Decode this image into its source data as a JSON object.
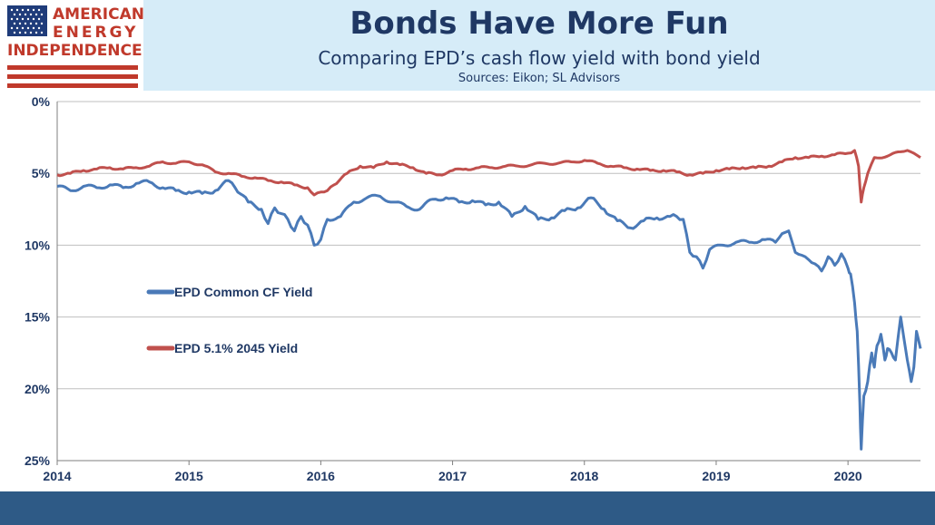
{
  "logo": {
    "line1": "AMERICAN",
    "line2": "ENERGY",
    "line3": "INDEPENDENCE",
    "colors": {
      "red": "#c0392b",
      "blue": "#1f3c7a"
    }
  },
  "header": {
    "title": "Bonds Have More Fun",
    "subtitle": "Comparing EPD’s cash flow yield with bond yield",
    "sources": "Sources: Eikon; SL Advisors"
  },
  "colors": {
    "blue_series": "#4a7ab8",
    "red_series": "#c0504d",
    "header_bg": "#d6ecf8",
    "footer_bg": "#2e5a86",
    "title": "#1f3864"
  },
  "chart_data": {
    "type": "line",
    "title": "",
    "xlabel": "",
    "ylabel": "",
    "y_inverted": true,
    "ylim": [
      0,
      25
    ],
    "y_ticks": [
      "0%",
      "5%",
      "10%",
      "15%",
      "20%",
      "25%"
    ],
    "x_ticks": [
      "2014",
      "2015",
      "2016",
      "2017",
      "2018",
      "2019",
      "2020"
    ],
    "xlim": [
      2014.0,
      2020.55
    ],
    "grid": true,
    "legend_placement": "center-left",
    "series": [
      {
        "name": "EPD Common CF Yield",
        "color": "#4a7ab8",
        "x": [
          2014.0,
          2014.1,
          2014.2,
          2014.3,
          2014.4,
          2014.5,
          2014.6,
          2014.7,
          2014.8,
          2014.9,
          2015.0,
          2015.1,
          2015.2,
          2015.3,
          2015.35,
          2015.45,
          2015.55,
          2015.6,
          2015.65,
          2015.7,
          2015.75,
          2015.8,
          2015.85,
          2015.9,
          2015.95,
          2016.0,
          2016.05,
          2016.15,
          2016.25,
          2016.35,
          2016.45,
          2016.55,
          2016.65,
          2016.75,
          2016.85,
          2016.95,
          2017.05,
          2017.15,
          2017.25,
          2017.35,
          2017.45,
          2017.55,
          2017.65,
          2017.75,
          2017.85,
          2017.95,
          2018.05,
          2018.15,
          2018.25,
          2018.35,
          2018.45,
          2018.55,
          2018.65,
          2018.7,
          2018.75,
          2018.8,
          2018.85,
          2018.9,
          2018.95,
          2019.05,
          2019.15,
          2019.25,
          2019.35,
          2019.45,
          2019.5,
          2019.55,
          2019.6,
          2019.65,
          2019.7,
          2019.75,
          2019.8,
          2019.85,
          2019.9,
          2019.95,
          2020.0,
          2020.02,
          2020.05,
          2020.07,
          2020.09,
          2020.1,
          2020.12,
          2020.15,
          2020.18,
          2020.2,
          2020.22,
          2020.25,
          2020.28,
          2020.3,
          2020.33,
          2020.36,
          2020.4,
          2020.45,
          2020.48,
          2020.5,
          2020.52,
          2020.55
        ],
        "values": [
          5.9,
          6.2,
          5.9,
          6.0,
          5.8,
          6.0,
          5.7,
          5.6,
          6.0,
          6.2,
          6.3,
          6.4,
          6.2,
          5.5,
          6.0,
          7.0,
          7.5,
          8.5,
          7.4,
          7.8,
          8.2,
          9.0,
          8.0,
          8.6,
          10.0,
          9.6,
          8.2,
          8.0,
          7.0,
          6.7,
          6.6,
          7.0,
          7.3,
          7.5,
          6.8,
          6.7,
          7.0,
          6.9,
          7.2,
          7.0,
          8.0,
          7.3,
          8.2,
          8.1,
          7.6,
          7.4,
          6.7,
          7.5,
          8.3,
          8.8,
          8.3,
          8.1,
          8.0,
          8.0,
          8.2,
          10.5,
          10.8,
          11.6,
          10.3,
          10.0,
          9.8,
          9.8,
          9.6,
          9.8,
          9.2,
          9.0,
          10.5,
          10.7,
          11.0,
          11.3,
          11.8,
          10.8,
          11.4,
          10.6,
          11.6,
          12.0,
          14.0,
          16.0,
          21.0,
          24.2,
          20.5,
          19.5,
          17.5,
          18.5,
          17.0,
          16.2,
          18.0,
          17.2,
          17.5,
          18.0,
          15.0,
          18.0,
          19.5,
          18.5,
          16.0,
          17.2
        ]
      },
      {
        "name": "EPD 5.1% 2045 Yield",
        "color": "#c0504d",
        "x": [
          2014.0,
          2014.1,
          2014.2,
          2014.3,
          2014.4,
          2014.5,
          2014.6,
          2014.7,
          2014.8,
          2014.9,
          2015.0,
          2015.1,
          2015.2,
          2015.3,
          2015.4,
          2015.5,
          2015.6,
          2015.7,
          2015.8,
          2015.9,
          2015.95,
          2016.0,
          2016.05,
          2016.1,
          2016.2,
          2016.3,
          2016.4,
          2016.5,
          2016.6,
          2016.7,
          2016.8,
          2016.9,
          2017.0,
          2017.1,
          2017.2,
          2017.3,
          2017.4,
          2017.5,
          2017.6,
          2017.7,
          2017.8,
          2017.9,
          2018.0,
          2018.1,
          2018.2,
          2018.3,
          2018.4,
          2018.5,
          2018.6,
          2018.7,
          2018.8,
          2018.9,
          2019.0,
          2019.1,
          2019.2,
          2019.3,
          2019.4,
          2019.5,
          2019.6,
          2019.7,
          2019.8,
          2019.9,
          2020.0,
          2020.05,
          2020.08,
          2020.1,
          2020.12,
          2020.15,
          2020.2,
          2020.3,
          2020.4,
          2020.45,
          2020.5,
          2020.55
        ],
        "values": [
          5.1,
          5.0,
          4.8,
          4.7,
          4.6,
          4.7,
          4.6,
          4.5,
          4.2,
          4.3,
          4.2,
          4.4,
          4.9,
          5.0,
          5.2,
          5.3,
          5.5,
          5.6,
          5.8,
          6.0,
          6.5,
          6.3,
          6.2,
          5.8,
          5.0,
          4.5,
          4.6,
          4.2,
          4.4,
          4.6,
          5.0,
          5.1,
          4.8,
          4.7,
          4.6,
          4.6,
          4.5,
          4.5,
          4.4,
          4.3,
          4.3,
          4.2,
          4.1,
          4.3,
          4.5,
          4.6,
          4.7,
          4.8,
          4.8,
          4.9,
          5.1,
          5.0,
          4.8,
          4.7,
          4.6,
          4.6,
          4.5,
          4.2,
          3.9,
          3.9,
          3.8,
          3.7,
          3.6,
          3.4,
          4.5,
          7.0,
          6.0,
          5.0,
          3.9,
          3.8,
          3.5,
          3.4,
          3.6,
          3.9
        ]
      }
    ]
  }
}
